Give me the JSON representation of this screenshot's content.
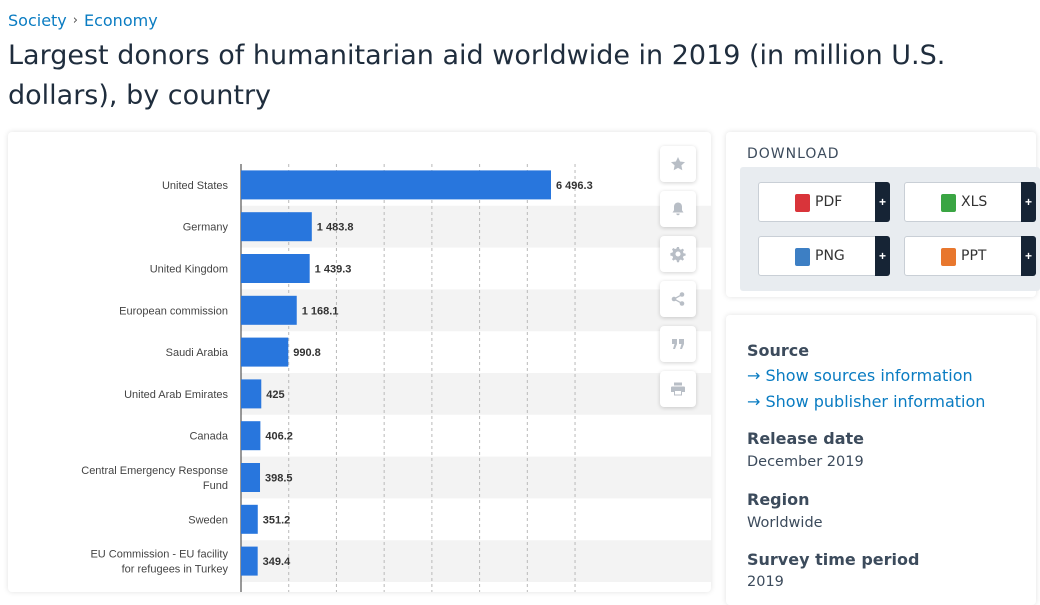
{
  "breadcrumb": {
    "items": [
      "Society",
      "Economy"
    ],
    "separator": "›"
  },
  "page": {
    "title": "Largest donors of humanitarian aid worldwide in 2019 (in million U.S. dollars), by country"
  },
  "colors": {
    "bar": "#2876dd",
    "accent": "#0a7cc2",
    "band": "#f3f3f3",
    "grid": "#b9b9b9"
  },
  "chart_data": {
    "type": "bar",
    "orientation": "horizontal",
    "title": "",
    "xlabel": "",
    "ylabel": "",
    "xlim": [
      0,
      8000
    ],
    "grid": true,
    "categories": [
      "United States",
      "Germany",
      "United Kingdom",
      "European commission",
      "Saudi Arabia",
      "United Arab Emirates",
      "Canada",
      "Central Emergency Response Fund",
      "Sweden",
      "EU Commission - EU facility for refugees in Turkey"
    ],
    "values": [
      6496.3,
      1483.8,
      1439.3,
      1168.1,
      990.8,
      425,
      406.2,
      398.5,
      351.2,
      349.4
    ],
    "value_labels": [
      "6 496.3",
      "1 483.8",
      "1 439.3",
      "1 168.1",
      "990.8",
      "425",
      "406.2",
      "398.5",
      "351.2",
      "349.4"
    ]
  },
  "tools": [
    {
      "name": "favorite-icon"
    },
    {
      "name": "notification-bell-icon"
    },
    {
      "name": "settings-gear-icon"
    },
    {
      "name": "share-icon"
    },
    {
      "name": "citation-quote-icon"
    },
    {
      "name": "print-icon"
    }
  ],
  "download": {
    "title": "DOWNLOAD",
    "buttons": [
      {
        "label": "PDF",
        "icon_color": "#d9343a",
        "plus": "+"
      },
      {
        "label": "XLS",
        "icon_color": "#3aa543",
        "plus": "+"
      },
      {
        "label": "PNG",
        "icon_color": "#3d7fc4",
        "plus": "+"
      },
      {
        "label": "PPT",
        "icon_color": "#e8772e",
        "plus": "+"
      }
    ]
  },
  "info": {
    "source_label": "Source",
    "source_link": "Show sources information",
    "publisher_link": "Show publisher information",
    "link_arrow": "→",
    "release_label": "Release date",
    "release_value": "December 2019",
    "region_label": "Region",
    "region_value": "Worldwide",
    "survey_label": "Survey time period",
    "survey_value": "2019"
  }
}
